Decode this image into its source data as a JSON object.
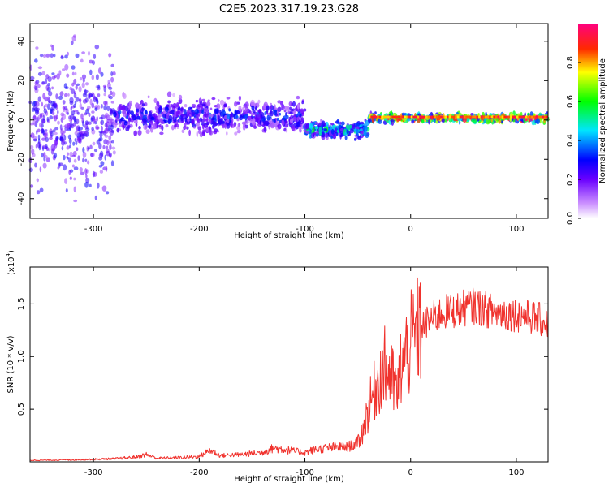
{
  "figure": {
    "title": "C2E5.2023.317.19.23.G28"
  },
  "colors": {
    "snr_line": "#f0322d",
    "axis": "#000000",
    "background": "#ffffff"
  },
  "chart_data": [
    {
      "type": "heatmap",
      "title": "C2E5.2023.317.19.23.G28",
      "xlabel": "Height of straight line (km)",
      "ylabel": "Frequency (Hz)",
      "xlim": [
        -360,
        130
      ],
      "ylim": [
        -50,
        49
      ],
      "x_ticks": [
        -300,
        -200,
        -100,
        0,
        100
      ],
      "y_ticks": [
        -40,
        -20,
        0,
        20,
        40
      ],
      "colorbar": {
        "label": "Normalized spectral amplitude",
        "range": [
          0.0,
          1.0
        ],
        "ticks": [
          0.0,
          0.2,
          0.4,
          0.6,
          0.8
        ],
        "colormap": "rainbow (white-violet-blue-cyan-green-yellow-red-magenta)"
      },
      "features": [
        {
          "x_range": [
            -360,
            -280
          ],
          "frequency_center": 0,
          "frequency_spread": 49,
          "amplitude": 0.1,
          "description": "broadband scattered noise"
        },
        {
          "x_range": [
            -280,
            -100
          ],
          "frequency_center": 2,
          "frequency_spread": 12,
          "amplitude": 0.3,
          "description": "diffuse signal band"
        },
        {
          "x_range": [
            -100,
            -40
          ],
          "frequency_center": -5,
          "frequency_spread": 6,
          "amplitude": 0.5,
          "description": "signal dips below 0 Hz"
        },
        {
          "x_range": [
            -40,
            130
          ],
          "frequency_center": 1,
          "frequency_spread": 3,
          "amplitude": 0.9,
          "description": "strong narrow carrier line"
        }
      ]
    },
    {
      "type": "line",
      "xlabel": "Height of straight line (km)",
      "ylabel": "SNR (10 * v/v)",
      "y_multiplier_label": "(x10",
      "y_multiplier_exponent": "4",
      "y_multiplier_close": ")",
      "xlim": [
        -360,
        130
      ],
      "ylim": [
        0,
        18500
      ],
      "x_ticks": [
        -300,
        -200,
        -100,
        0,
        100
      ],
      "y_ticks": [
        5000,
        10000,
        15000
      ],
      "y_tick_labels": [
        "0.5",
        "1.0",
        "1.5"
      ],
      "series": [
        {
          "x": [
            -360,
            -340,
            -320,
            -300,
            -280,
            -260,
            -250,
            -240,
            -220,
            -200,
            -190,
            -180,
            -160,
            -140,
            -130,
            -120,
            -110,
            -100,
            -90,
            -80,
            -70,
            -60,
            -50,
            -45,
            -40,
            -35,
            -30,
            -25,
            -20,
            -15,
            -12,
            -10,
            -5,
            0,
            5,
            10,
            20,
            30,
            40,
            50,
            60,
            70,
            80,
            90,
            100,
            110,
            120,
            130
          ],
          "values": [
            150,
            170,
            200,
            250,
            300,
            450,
            700,
            350,
            400,
            500,
            1100,
            600,
            700,
            900,
            1300,
            1200,
            1000,
            900,
            1200,
            1300,
            1400,
            1400,
            1800,
            3000,
            5000,
            6500,
            8000,
            9000,
            8500,
            7000,
            6500,
            9000,
            10000,
            11200,
            12000,
            12800,
            13600,
            14200,
            14300,
            14600,
            14800,
            14500,
            14200,
            14100,
            14000,
            13800,
            13600,
            13200
          ]
        }
      ]
    }
  ]
}
